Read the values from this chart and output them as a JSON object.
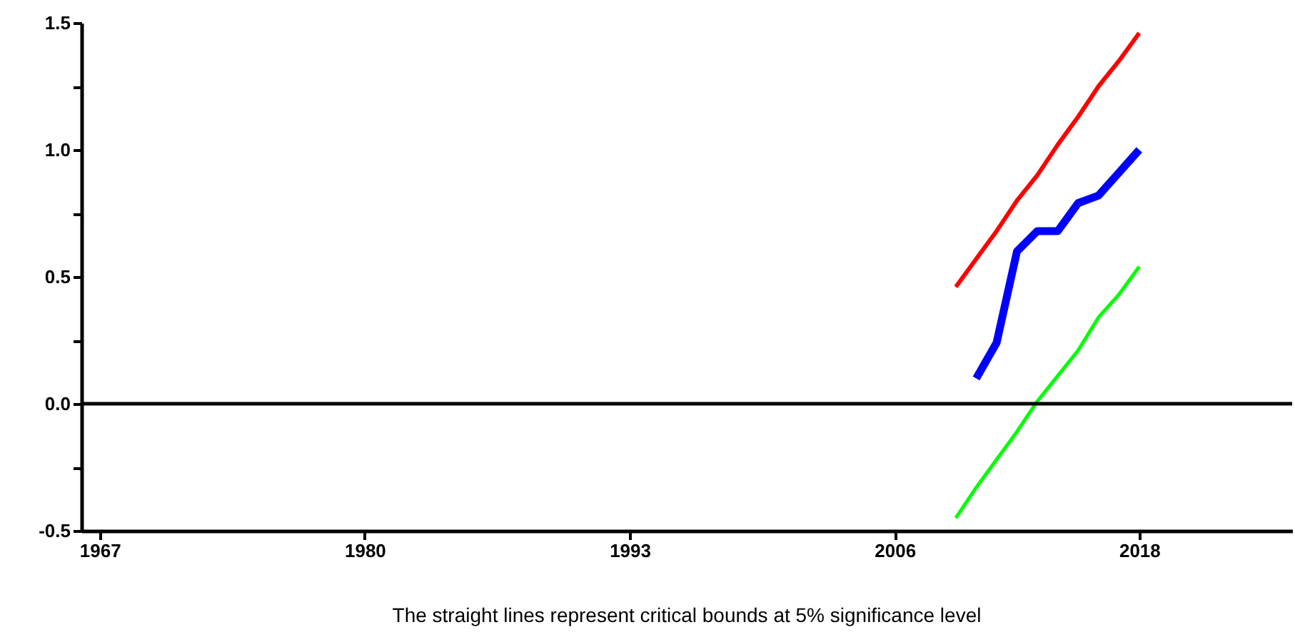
{
  "chart_data": {
    "type": "line",
    "annotations": [
      "The straight lines represent critical bounds at 5% significance level"
    ],
    "xlim": [
      1966.1,
      2025.5
    ],
    "xticks": [
      1967,
      1980,
      1993,
      2006,
      2018
    ],
    "ylim": [
      -0.5,
      1.5
    ],
    "yticks": [
      {
        "value": -0.5,
        "label": "-0.5"
      },
      {
        "value": -0.25,
        "label": null
      },
      {
        "value": 0,
        "label": "0.0"
      },
      {
        "value": 0.25,
        "label": null
      },
      {
        "value": 0.5,
        "label": "0.5"
      },
      {
        "value": 0.75,
        "label": null
      },
      {
        "value": 1,
        "label": "1.0"
      },
      {
        "value": 1.25,
        "label": null
      },
      {
        "value": 1.5,
        "label": "1.5"
      }
    ],
    "grid": false,
    "legend": false,
    "marker": "none",
    "line_style": "solid",
    "ref_lines": [
      {
        "axis": "y",
        "value": 0,
        "color": "#000000"
      }
    ],
    "series": [
      {
        "color": "#ff0000",
        "x": [
          2009,
          2010,
          2011,
          2012,
          2013,
          2014,
          2015,
          2016,
          2017,
          2018
        ],
        "values": [
          0.46,
          0.57,
          0.68,
          0.8,
          0.9,
          1.02,
          1.13,
          1.25,
          1.35,
          1.46
        ]
      },
      {
        "color": "#0000ff",
        "x": [
          2010,
          2011,
          2012,
          2013,
          2014,
          2015,
          2016,
          2017,
          2018
        ],
        "values": [
          0.1,
          0.24,
          0.6,
          0.68,
          0.68,
          0.79,
          0.82,
          0.91,
          1.0
        ]
      },
      {
        "color": "#00ff00",
        "x": [
          2009,
          2010,
          2011,
          2012,
          2013,
          2014,
          2015,
          2016,
          2017,
          2018
        ],
        "values": [
          -0.45,
          -0.33,
          -0.22,
          -0.11,
          0.01,
          0.11,
          0.21,
          0.34,
          0.43,
          0.54
        ]
      }
    ]
  }
}
